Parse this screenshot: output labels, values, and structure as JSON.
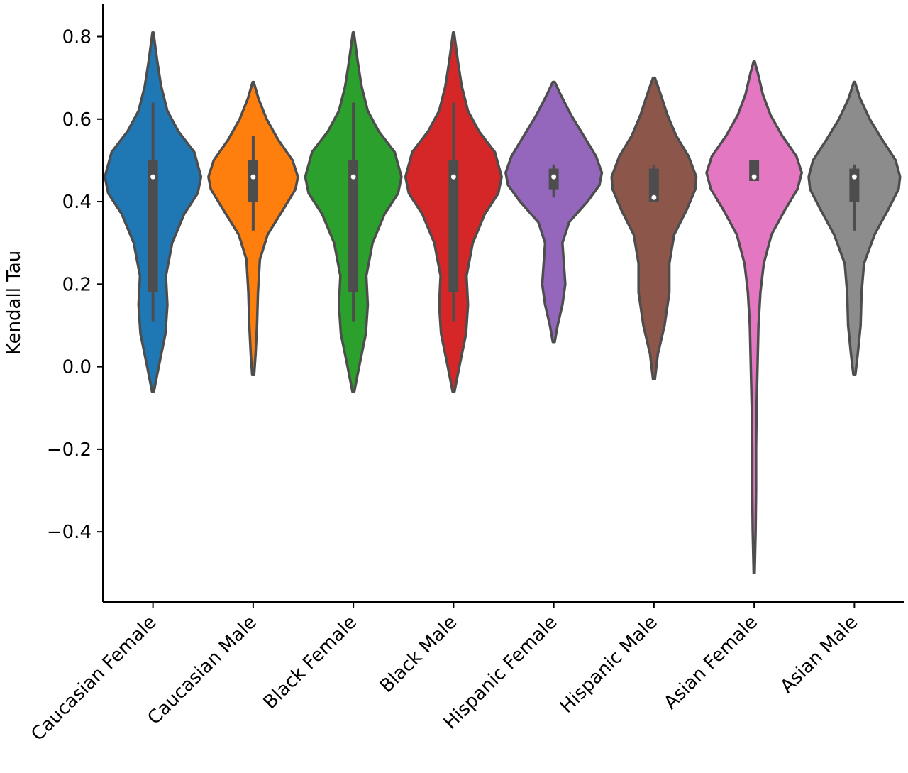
{
  "chart_data": {
    "type": "violin",
    "xlabel": "",
    "ylabel": "Kendall Tau",
    "ylim": [
      -0.57,
      0.88
    ],
    "yticks": [
      -0.4,
      -0.2,
      0.0,
      0.2,
      0.4,
      0.6,
      0.8
    ],
    "ytick_labels": [
      "−0.4",
      "−0.2",
      "0.0",
      "0.2",
      "0.4",
      "0.6",
      "0.8"
    ],
    "grid": false,
    "categories": [
      "Caucasian Female",
      "Caucasian Male",
      "Black Female",
      "Black Male",
      "Hispanic Female",
      "Hispanic Male",
      "Asian Female",
      "Asian Male"
    ],
    "series": [
      {
        "category": "Caucasian Female",
        "color": "#1f77b4",
        "min": -0.06,
        "max": 0.81,
        "q1": 0.18,
        "median": 0.46,
        "q3": 0.5,
        "whisker_low": 0.11,
        "whisker_high": 0.64,
        "density": [
          [
            -0.06,
            0.02
          ],
          [
            0.0,
            0.12
          ],
          [
            0.08,
            0.26
          ],
          [
            0.15,
            0.3
          ],
          [
            0.22,
            0.27
          ],
          [
            0.3,
            0.4
          ],
          [
            0.37,
            0.65
          ],
          [
            0.42,
            0.93
          ],
          [
            0.46,
            1.0
          ],
          [
            0.52,
            0.86
          ],
          [
            0.57,
            0.53
          ],
          [
            0.62,
            0.3
          ],
          [
            0.68,
            0.17
          ],
          [
            0.74,
            0.09
          ],
          [
            0.81,
            0.01
          ]
        ]
      },
      {
        "category": "Caucasian Male",
        "color": "#ff7f0e",
        "min": -0.02,
        "max": 0.69,
        "q1": 0.4,
        "median": 0.46,
        "q3": 0.5,
        "whisker_low": 0.33,
        "whisker_high": 0.56,
        "density": [
          [
            -0.02,
            0.02
          ],
          [
            0.03,
            0.05
          ],
          [
            0.1,
            0.08
          ],
          [
            0.18,
            0.1
          ],
          [
            0.26,
            0.14
          ],
          [
            0.32,
            0.3
          ],
          [
            0.38,
            0.62
          ],
          [
            0.43,
            0.88
          ],
          [
            0.46,
            0.93
          ],
          [
            0.5,
            0.82
          ],
          [
            0.55,
            0.52
          ],
          [
            0.6,
            0.28
          ],
          [
            0.65,
            0.11
          ],
          [
            0.69,
            0.01
          ]
        ]
      },
      {
        "category": "Black Female",
        "color": "#2ca02c",
        "min": -0.06,
        "max": 0.81,
        "q1": 0.18,
        "median": 0.46,
        "q3": 0.5,
        "whisker_low": 0.11,
        "whisker_high": 0.64,
        "density": [
          [
            -0.06,
            0.02
          ],
          [
            0.0,
            0.12
          ],
          [
            0.08,
            0.26
          ],
          [
            0.15,
            0.3
          ],
          [
            0.22,
            0.27
          ],
          [
            0.3,
            0.4
          ],
          [
            0.37,
            0.65
          ],
          [
            0.42,
            0.93
          ],
          [
            0.46,
            1.0
          ],
          [
            0.52,
            0.86
          ],
          [
            0.57,
            0.53
          ],
          [
            0.62,
            0.3
          ],
          [
            0.68,
            0.17
          ],
          [
            0.74,
            0.09
          ],
          [
            0.81,
            0.01
          ]
        ]
      },
      {
        "category": "Black Male",
        "color": "#d62728",
        "min": -0.06,
        "max": 0.81,
        "q1": 0.18,
        "median": 0.46,
        "q3": 0.5,
        "whisker_low": 0.11,
        "whisker_high": 0.64,
        "density": [
          [
            -0.06,
            0.02
          ],
          [
            0.0,
            0.12
          ],
          [
            0.08,
            0.26
          ],
          [
            0.15,
            0.3
          ],
          [
            0.22,
            0.27
          ],
          [
            0.3,
            0.4
          ],
          [
            0.37,
            0.65
          ],
          [
            0.42,
            0.93
          ],
          [
            0.46,
            1.0
          ],
          [
            0.52,
            0.86
          ],
          [
            0.57,
            0.53
          ],
          [
            0.62,
            0.3
          ],
          [
            0.68,
            0.17
          ],
          [
            0.74,
            0.09
          ],
          [
            0.81,
            0.01
          ]
        ]
      },
      {
        "category": "Hispanic Female",
        "color": "#9467bd",
        "min": 0.06,
        "max": 0.69,
        "q1": 0.43,
        "median": 0.46,
        "q3": 0.48,
        "whisker_low": 0.41,
        "whisker_high": 0.49,
        "density": [
          [
            0.06,
            0.02
          ],
          [
            0.1,
            0.08
          ],
          [
            0.15,
            0.18
          ],
          [
            0.2,
            0.24
          ],
          [
            0.25,
            0.21
          ],
          [
            0.3,
            0.18
          ],
          [
            0.35,
            0.32
          ],
          [
            0.4,
            0.7
          ],
          [
            0.44,
            0.95
          ],
          [
            0.47,
            1.0
          ],
          [
            0.51,
            0.88
          ],
          [
            0.56,
            0.62
          ],
          [
            0.61,
            0.36
          ],
          [
            0.66,
            0.14
          ],
          [
            0.69,
            0.02
          ]
        ]
      },
      {
        "category": "Hispanic Male",
        "color": "#8c564b",
        "min": -0.03,
        "max": 0.7,
        "q1": 0.4,
        "median": 0.41,
        "q3": 0.48,
        "whisker_low": 0.4,
        "whisker_high": 0.49,
        "density": [
          [
            -0.03,
            0.02
          ],
          [
            0.03,
            0.08
          ],
          [
            0.1,
            0.22
          ],
          [
            0.18,
            0.32
          ],
          [
            0.25,
            0.32
          ],
          [
            0.32,
            0.42
          ],
          [
            0.38,
            0.68
          ],
          [
            0.43,
            0.86
          ],
          [
            0.46,
            0.88
          ],
          [
            0.51,
            0.72
          ],
          [
            0.56,
            0.46
          ],
          [
            0.61,
            0.28
          ],
          [
            0.66,
            0.14
          ],
          [
            0.7,
            0.02
          ]
        ]
      },
      {
        "category": "Asian Female",
        "color": "#e377c2",
        "min": -0.5,
        "max": 0.74,
        "q1": 0.45,
        "median": 0.46,
        "q3": 0.5,
        "whisker_low": 0.45,
        "whisker_high": 0.5,
        "density": [
          [
            -0.5,
            0.01
          ],
          [
            -0.4,
            0.03
          ],
          [
            -0.3,
            0.04
          ],
          [
            -0.2,
            0.04
          ],
          [
            -0.1,
            0.05
          ],
          [
            0.0,
            0.07
          ],
          [
            0.1,
            0.09
          ],
          [
            0.18,
            0.13
          ],
          [
            0.25,
            0.2
          ],
          [
            0.32,
            0.36
          ],
          [
            0.38,
            0.64
          ],
          [
            0.43,
            0.9
          ],
          [
            0.47,
            0.99
          ],
          [
            0.51,
            0.88
          ],
          [
            0.56,
            0.58
          ],
          [
            0.61,
            0.34
          ],
          [
            0.66,
            0.18
          ],
          [
            0.71,
            0.08
          ],
          [
            0.74,
            0.01
          ]
        ]
      },
      {
        "category": "Asian Male",
        "color": "#8c8c8c",
        "min": -0.02,
        "max": 0.69,
        "q1": 0.4,
        "median": 0.46,
        "q3": 0.48,
        "whisker_low": 0.33,
        "whisker_high": 0.49,
        "density": [
          [
            -0.02,
            0.02
          ],
          [
            0.03,
            0.07
          ],
          [
            0.1,
            0.13
          ],
          [
            0.18,
            0.15
          ],
          [
            0.25,
            0.2
          ],
          [
            0.32,
            0.42
          ],
          [
            0.38,
            0.7
          ],
          [
            0.43,
            0.92
          ],
          [
            0.46,
            0.95
          ],
          [
            0.5,
            0.86
          ],
          [
            0.55,
            0.58
          ],
          [
            0.6,
            0.32
          ],
          [
            0.65,
            0.12
          ],
          [
            0.69,
            0.01
          ]
        ]
      }
    ]
  }
}
